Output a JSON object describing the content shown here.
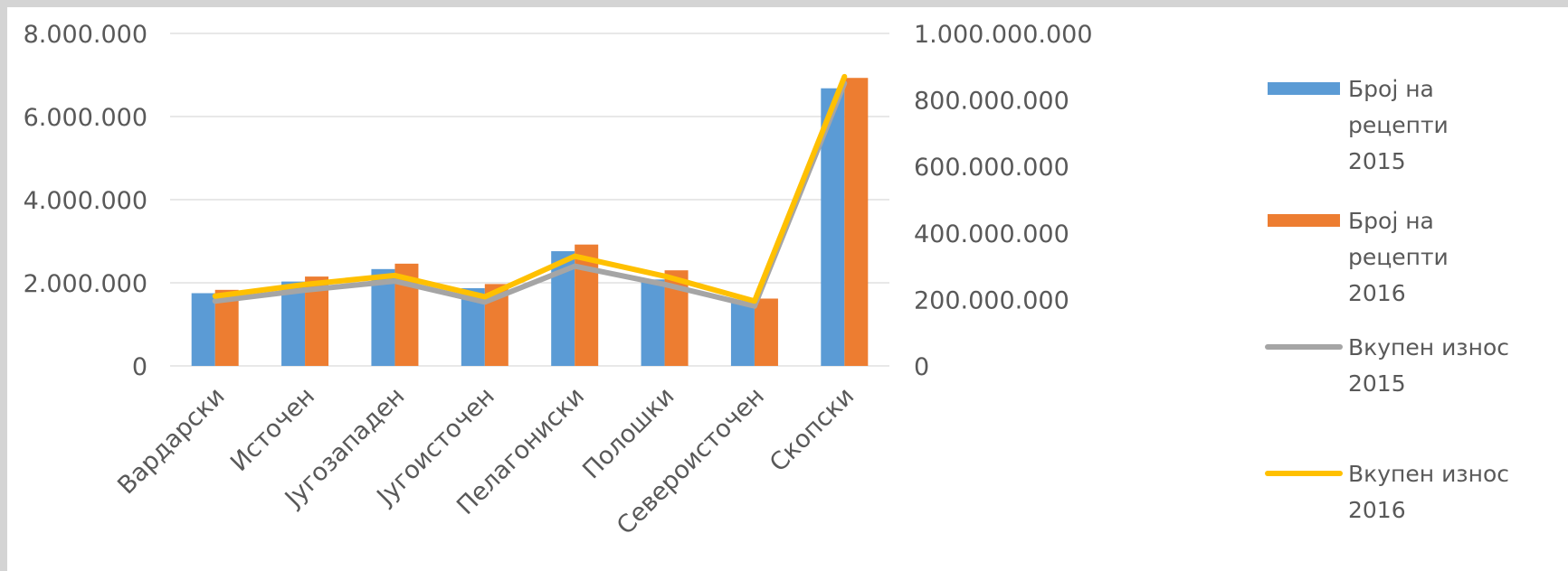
{
  "chart_data": {
    "type": "bar",
    "categories": [
      "Вардарски",
      "Источен",
      "Југозападен",
      "Југоисточен",
      "Пелагониски",
      "Полошки",
      "Североисточен",
      "Скопски"
    ],
    "series": [
      {
        "name_lines": [
          "Број на",
          "рецепти",
          "2015"
        ],
        "type": "bar",
        "axis": "left",
        "color": "#5B9BD5",
        "values": [
          1750000,
          2030000,
          2330000,
          1870000,
          2760000,
          2080000,
          1520000,
          6680000
        ]
      },
      {
        "name_lines": [
          "Број на",
          "рецепти",
          "2016"
        ],
        "type": "bar",
        "axis": "left",
        "color": "#ED7D31",
        "values": [
          1830000,
          2150000,
          2460000,
          1970000,
          2920000,
          2300000,
          1620000,
          6930000
        ]
      },
      {
        "name_lines": [
          "Вкупен износ",
          "2015"
        ],
        "type": "line",
        "axis": "right",
        "color": "#A5A5A5",
        "values": [
          195000000,
          228000000,
          255000000,
          192000000,
          300000000,
          245000000,
          180000000,
          850000000
        ]
      },
      {
        "name_lines": [
          "Вкупен износ",
          "2016"
        ],
        "type": "line",
        "axis": "right",
        "color": "#FFC000",
        "values": [
          210000000,
          245000000,
          272000000,
          208000000,
          330000000,
          270000000,
          195000000,
          870000000
        ]
      }
    ],
    "y_left": {
      "range": [
        0,
        8000000
      ],
      "ticks": [
        0,
        2000000,
        4000000,
        6000000,
        8000000
      ],
      "tick_labels": [
        "0",
        "2.000.000",
        "4.000.000",
        "6.000.000",
        "8.000.000"
      ]
    },
    "y_right": {
      "range": [
        0,
        1000000000
      ],
      "ticks": [
        0,
        200000000,
        400000000,
        600000000,
        800000000,
        1000000000
      ],
      "tick_labels": [
        "0",
        "200.000.000",
        "400.000.000",
        "600.000.000",
        "800.000.000",
        "1.000.000.000"
      ]
    },
    "grid": true,
    "legend": "right"
  }
}
